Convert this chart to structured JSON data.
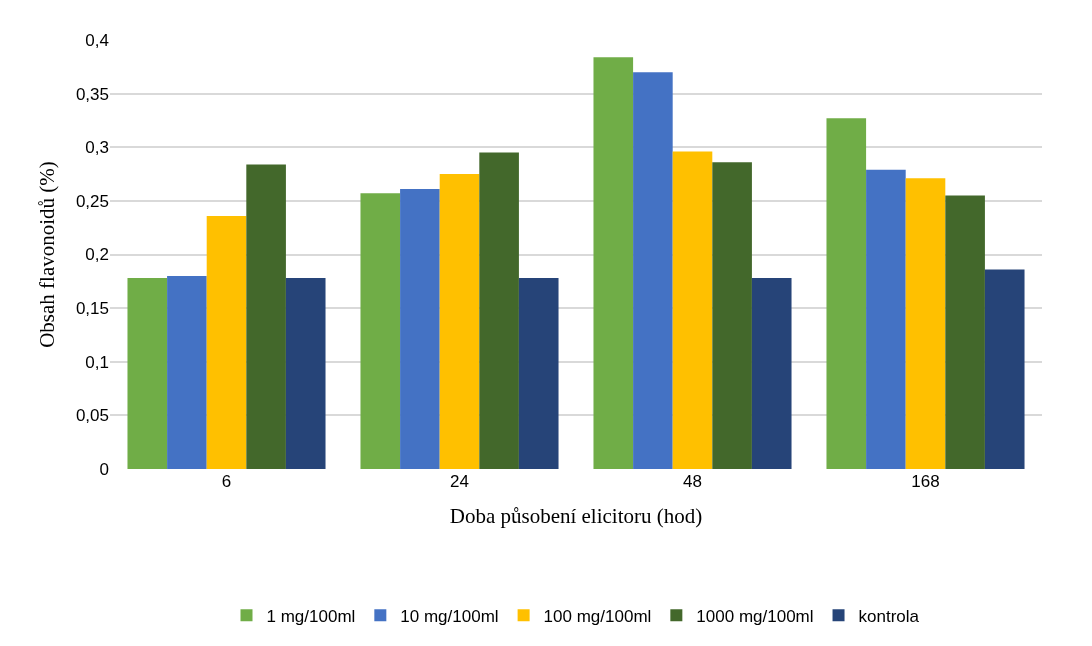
{
  "chart_data": {
    "type": "bar",
    "xlabel": "Doba působení elicitoru (hod)",
    "ylabel": "Obsah flavonoidů (%)",
    "categories": [
      "6",
      "24",
      "48",
      "168"
    ],
    "series": [
      {
        "name": "1 mg/100ml",
        "color": "#70ad47",
        "values": [
          0.178,
          0.257,
          0.384,
          0.327
        ]
      },
      {
        "name": "10 mg/100ml",
        "color": "#4472c4",
        "values": [
          0.18,
          0.261,
          0.37,
          0.279
        ]
      },
      {
        "name": "100 mg/100ml",
        "color": "#ffc000",
        "values": [
          0.236,
          0.275,
          0.296,
          0.271
        ]
      },
      {
        "name": "1000 mg/100ml",
        "color": "#43682b",
        "values": [
          0.284,
          0.295,
          0.286,
          0.255
        ]
      },
      {
        "name": "kontrola",
        "color": "#264478",
        "values": [
          0.178,
          0.178,
          0.178,
          0.186
        ]
      }
    ],
    "ylim": [
      0,
      0.4
    ],
    "yticks": [
      {
        "value": 0,
        "label": "0"
      },
      {
        "value": 0.05,
        "label": "0,05"
      },
      {
        "value": 0.1,
        "label": "0,1"
      },
      {
        "value": 0.15,
        "label": "0,15"
      },
      {
        "value": 0.2,
        "label": "0,2"
      },
      {
        "value": 0.25,
        "label": "0,25"
      },
      {
        "value": 0.3,
        "label": "0,3"
      },
      {
        "value": 0.35,
        "label": "0,35"
      },
      {
        "value": 0.4,
        "label": "0,4"
      }
    ],
    "grid": "y",
    "legend": "bottom"
  }
}
